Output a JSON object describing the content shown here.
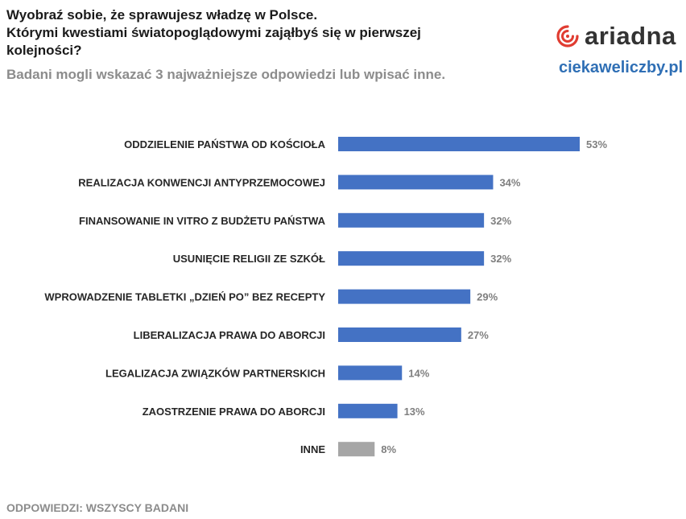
{
  "header": {
    "title_lines": [
      "Wyobraź sobie, że sprawujesz władzę w Polsce.",
      "Którymi kwestiami światopoglądowymi zająłbyś się w pierwszej",
      "kolejności?"
    ],
    "subtitle": "Badani mogli wskazać 3 najważniejsze odpowiedzi lub wpisać inne."
  },
  "brand": {
    "logo_text": "ariadna",
    "site": "ciekaweliczby.pl",
    "logo_color": "#e03c31",
    "site_color": "#2f6fb5"
  },
  "footer": {
    "note": "ODPOWIEDZI: WSZYSCY BADANI"
  },
  "colors": {
    "bar": "#4472c4",
    "bar_other": "#a6a6a6",
    "category_text": "#262626",
    "value_text": "#7f7f7f"
  },
  "chart_data": {
    "type": "bar",
    "orientation": "horizontal",
    "title": "Wyobraź sobie, że sprawujesz władzę w Polsce. Którymi kwestiami światopoglądowymi zająłbyś się w pierwszej kolejności?",
    "subtitle": "Badani mogli wskazać 3 najważniejsze odpowiedzi lub wpisać inne.",
    "xlabel": "",
    "ylabel": "",
    "value_suffix": "%",
    "xlim": [
      0,
      53
    ],
    "grid": false,
    "categories": [
      "ODDZIELENIE PAŃSTWA OD KOŚCIOŁA",
      "REALIZACJA KONWENCJI ANTYPRZEMOCOWEJ",
      "FINANSOWANIE IN VITRO Z BUDŻETU PAŃSTWA",
      "USUNIĘCIE RELIGII ZE SZKÓŁ",
      "WPROWADZENIE TABLETKI „DZIEŃ PO” BEZ RECEPTY",
      "LIBERALIZACJA PRAWA DO ABORCJI",
      "LEGALIZACJA ZWIĄZKÓW PARTNERSKICH",
      "ZAOSTRZENIE PRAWA DO ABORCJI",
      "INNE"
    ],
    "values": [
      53,
      34,
      32,
      32,
      29,
      27,
      14,
      13,
      8
    ],
    "value_labels": [
      "53%",
      "34%",
      "32%",
      "32%",
      "29%",
      "27%",
      "14%",
      "13%",
      "8%"
    ],
    "highlight_other": "INNE"
  }
}
